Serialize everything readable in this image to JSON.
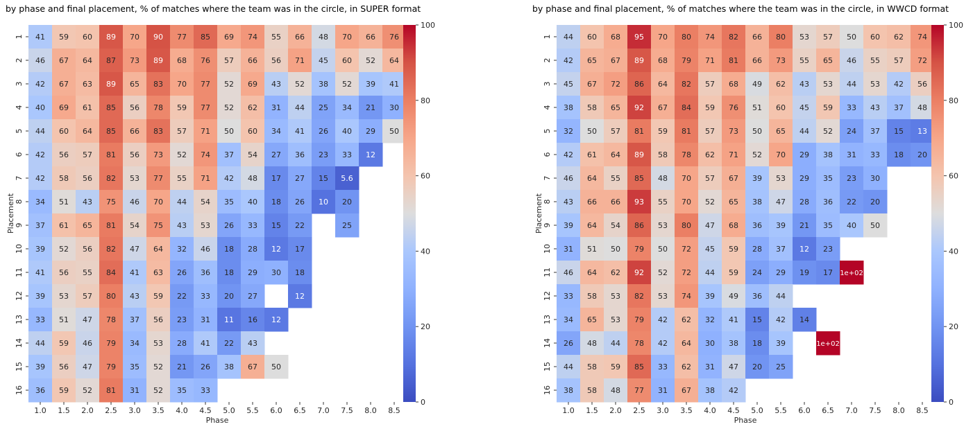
{
  "chart_data": [
    {
      "type": "heatmap",
      "title": "by phase and final placement, % of matches where the team was in the circle, in SUPER format",
      "xlabel": "Phase",
      "ylabel": "Placement",
      "x": [
        "1.0",
        "1.5",
        "2.0",
        "2.5",
        "3.0",
        "3.5",
        "4.0",
        "4.5",
        "5.0",
        "5.5",
        "6.0",
        "6.5",
        "7.0",
        "7.5",
        "8.0",
        "8.5"
      ],
      "y": [
        "1",
        "2",
        "3",
        "4",
        "5",
        "6",
        "7",
        "8",
        "9",
        "10",
        "11",
        "12",
        "13",
        "14",
        "15",
        "16"
      ],
      "values": [
        [
          41,
          59,
          60,
          89,
          70,
          90,
          77,
          85,
          69,
          74,
          55,
          66,
          48,
          70,
          66,
          76
        ],
        [
          46,
          67,
          64,
          87,
          73,
          89,
          68,
          76,
          57,
          66,
          56,
          71,
          45,
          60,
          52,
          64
        ],
        [
          42,
          67,
          63,
          89,
          65,
          83,
          70,
          77,
          52,
          69,
          43,
          52,
          38,
          52,
          39,
          41
        ],
        [
          40,
          69,
          61,
          85,
          56,
          78,
          59,
          77,
          52,
          62,
          31,
          44,
          25,
          34,
          21,
          30
        ],
        [
          44,
          60,
          64,
          85,
          66,
          83,
          57,
          71,
          50,
          60,
          34,
          41,
          26,
          40,
          29,
          50
        ],
        [
          42,
          56,
          57,
          81,
          56,
          73,
          52,
          74,
          37,
          54,
          27,
          36,
          23,
          33,
          12,
          null
        ],
        [
          42,
          58,
          56,
          82,
          53,
          77,
          55,
          71,
          42,
          48,
          17,
          27,
          15,
          5.6,
          null,
          null
        ],
        [
          34,
          51,
          43,
          75,
          46,
          70,
          44,
          54,
          35,
          40,
          18,
          26,
          10,
          20,
          null,
          null
        ],
        [
          37,
          61,
          65,
          81,
          54,
          75,
          43,
          53,
          26,
          33,
          15,
          22,
          null,
          25,
          null,
          null
        ],
        [
          39,
          52,
          56,
          82,
          47,
          64,
          32,
          46,
          18,
          28,
          12,
          17,
          null,
          null,
          null,
          null
        ],
        [
          41,
          56,
          55,
          84,
          41,
          63,
          26,
          36,
          18,
          29,
          30,
          18,
          null,
          null,
          null,
          null
        ],
        [
          39,
          53,
          57,
          80,
          43,
          59,
          22,
          33,
          20,
          27,
          null,
          12,
          null,
          null,
          null,
          null
        ],
        [
          33,
          51,
          47,
          78,
          37,
          56,
          23,
          31,
          11,
          16,
          12,
          null,
          null,
          null,
          null,
          null
        ],
        [
          44,
          59,
          46,
          79,
          34,
          53,
          28,
          41,
          22,
          43,
          null,
          null,
          null,
          null,
          null,
          null
        ],
        [
          39,
          56,
          47,
          79,
          35,
          52,
          21,
          26,
          38,
          67,
          50,
          null,
          null,
          null,
          null,
          null
        ],
        [
          36,
          59,
          52,
          81,
          31,
          52,
          35,
          33,
          null,
          null,
          null,
          null,
          null,
          null,
          null,
          null
        ]
      ],
      "labels": [
        [
          "41",
          "59",
          "60",
          "89",
          "70",
          "90",
          "77",
          "85",
          "69",
          "74",
          "55",
          "66",
          "48",
          "70",
          "66",
          "76"
        ],
        [
          "46",
          "67",
          "64",
          "87",
          "73",
          "89",
          "68",
          "76",
          "57",
          "66",
          "56",
          "71",
          "45",
          "60",
          "52",
          "64"
        ],
        [
          "42",
          "67",
          "63",
          "89",
          "65",
          "83",
          "70",
          "77",
          "52",
          "69",
          "43",
          "52",
          "38",
          "52",
          "39",
          "41"
        ],
        [
          "40",
          "69",
          "61",
          "85",
          "56",
          "78",
          "59",
          "77",
          "52",
          "62",
          "31",
          "44",
          "25",
          "34",
          "21",
          "30"
        ],
        [
          "44",
          "60",
          "64",
          "85",
          "66",
          "83",
          "57",
          "71",
          "50",
          "60",
          "34",
          "41",
          "26",
          "40",
          "29",
          "50"
        ],
        [
          "42",
          "56",
          "57",
          "81",
          "56",
          "73",
          "52",
          "74",
          "37",
          "54",
          "27",
          "36",
          "23",
          "33",
          "12",
          null
        ],
        [
          "42",
          "58",
          "56",
          "82",
          "53",
          "77",
          "55",
          "71",
          "42",
          "48",
          "17",
          "27",
          "15",
          "5.6",
          null,
          null
        ],
        [
          "34",
          "51",
          "43",
          "75",
          "46",
          "70",
          "44",
          "54",
          "35",
          "40",
          "18",
          "26",
          "10",
          "20",
          null,
          null
        ],
        [
          "37",
          "61",
          "65",
          "81",
          "54",
          "75",
          "43",
          "53",
          "26",
          "33",
          "15",
          "22",
          null,
          "25",
          null,
          null
        ],
        [
          "39",
          "52",
          "56",
          "82",
          "47",
          "64",
          "32",
          "46",
          "18",
          "28",
          "12",
          "17",
          null,
          null,
          null,
          null
        ],
        [
          "41",
          "56",
          "55",
          "84",
          "41",
          "63",
          "26",
          "36",
          "18",
          "29",
          "30",
          "18",
          null,
          null,
          null,
          null
        ],
        [
          "39",
          "53",
          "57",
          "80",
          "43",
          "59",
          "22",
          "33",
          "20",
          "27",
          null,
          "12",
          null,
          null,
          null,
          null
        ],
        [
          "33",
          "51",
          "47",
          "78",
          "37",
          "56",
          "23",
          "31",
          "11",
          "16",
          "12",
          null,
          null,
          null,
          null,
          null
        ],
        [
          "44",
          "59",
          "46",
          "79",
          "34",
          "53",
          "28",
          "41",
          "22",
          "43",
          null,
          null,
          null,
          null,
          null,
          null
        ],
        [
          "39",
          "56",
          "47",
          "79",
          "35",
          "52",
          "21",
          "26",
          "38",
          "67",
          "50",
          null,
          null,
          null,
          null,
          null
        ],
        [
          "36",
          "59",
          "52",
          "81",
          "31",
          "52",
          "35",
          "33",
          null,
          null,
          null,
          null,
          null,
          null,
          null,
          null
        ]
      ],
      "colorbar": {
        "colormap": "coolwarm",
        "range": [
          0,
          100
        ],
        "ticks": [
          "0",
          "20",
          "40",
          "60",
          "80",
          "100"
        ]
      }
    },
    {
      "type": "heatmap",
      "title": "by phase and final placement, % of matches where the team was in the circle, in WWCD format",
      "xlabel": "Phase",
      "ylabel": "Placement",
      "x": [
        "1.0",
        "1.5",
        "2.0",
        "2.5",
        "3.0",
        "3.5",
        "4.0",
        "4.5",
        "5.0",
        "5.5",
        "6.0",
        "6.5",
        "7.0",
        "7.5",
        "8.0",
        "8.5"
      ],
      "y": [
        "1",
        "2",
        "3",
        "4",
        "5",
        "6",
        "7",
        "8",
        "9",
        "10",
        "11",
        "12",
        "13",
        "14",
        "15",
        "16"
      ],
      "values": [
        [
          44,
          60,
          68,
          95,
          70,
          80,
          74,
          82,
          66,
          80,
          53,
          57,
          50,
          60,
          62,
          74
        ],
        [
          42,
          65,
          67,
          89,
          68,
          79,
          71,
          81,
          66,
          73,
          55,
          65,
          46,
          55,
          57,
          72
        ],
        [
          45,
          67,
          72,
          86,
          64,
          82,
          57,
          68,
          49,
          62,
          43,
          53,
          44,
          53,
          42,
          56
        ],
        [
          38,
          58,
          65,
          92,
          67,
          84,
          59,
          76,
          51,
          60,
          45,
          59,
          33,
          43,
          37,
          48
        ],
        [
          32,
          50,
          57,
          81,
          59,
          81,
          57,
          73,
          50,
          65,
          44,
          52,
          24,
          37,
          15,
          13
        ],
        [
          42,
          61,
          64,
          89,
          58,
          78,
          62,
          71,
          52,
          70,
          29,
          38,
          31,
          33,
          18,
          20
        ],
        [
          46,
          64,
          55,
          85,
          48,
          70,
          57,
          67,
          39,
          53,
          29,
          35,
          23,
          30,
          null,
          null
        ],
        [
          43,
          66,
          66,
          93,
          55,
          70,
          52,
          65,
          38,
          47,
          28,
          36,
          22,
          20,
          null,
          null
        ],
        [
          39,
          64,
          54,
          86,
          53,
          80,
          47,
          68,
          36,
          39,
          21,
          35,
          40,
          50,
          null,
          null
        ],
        [
          31,
          51,
          50,
          79,
          50,
          72,
          45,
          59,
          28,
          37,
          12,
          23,
          null,
          null,
          null,
          null
        ],
        [
          46,
          64,
          62,
          92,
          52,
          72,
          44,
          59,
          24,
          29,
          19,
          17,
          100,
          null,
          null,
          null
        ],
        [
          33,
          58,
          53,
          82,
          53,
          74,
          39,
          49,
          36,
          44,
          null,
          null,
          null,
          null,
          null,
          null
        ],
        [
          34,
          65,
          53,
          79,
          42,
          62,
          32,
          41,
          15,
          42,
          14,
          null,
          null,
          null,
          null,
          null
        ],
        [
          26,
          48,
          44,
          78,
          42,
          64,
          30,
          38,
          18,
          39,
          null,
          100,
          null,
          null,
          null,
          null
        ],
        [
          44,
          58,
          59,
          85,
          33,
          62,
          31,
          47,
          20,
          25,
          null,
          null,
          null,
          null,
          null,
          null
        ],
        [
          38,
          58,
          48,
          77,
          31,
          67,
          38,
          42,
          null,
          null,
          null,
          null,
          null,
          null,
          null,
          null
        ]
      ],
      "labels": [
        [
          "44",
          "60",
          "68",
          "95",
          "70",
          "80",
          "74",
          "82",
          "66",
          "80",
          "53",
          "57",
          "50",
          "60",
          "62",
          "74"
        ],
        [
          "42",
          "65",
          "67",
          "89",
          "68",
          "79",
          "71",
          "81",
          "66",
          "73",
          "55",
          "65",
          "46",
          "55",
          "57",
          "72"
        ],
        [
          "45",
          "67",
          "72",
          "86",
          "64",
          "82",
          "57",
          "68",
          "49",
          "62",
          "43",
          "53",
          "44",
          "53",
          "42",
          "56"
        ],
        [
          "38",
          "58",
          "65",
          "92",
          "67",
          "84",
          "59",
          "76",
          "51",
          "60",
          "45",
          "59",
          "33",
          "43",
          "37",
          "48"
        ],
        [
          "32",
          "50",
          "57",
          "81",
          "59",
          "81",
          "57",
          "73",
          "50",
          "65",
          "44",
          "52",
          "24",
          "37",
          "15",
          "13"
        ],
        [
          "42",
          "61",
          "64",
          "89",
          "58",
          "78",
          "62",
          "71",
          "52",
          "70",
          "29",
          "38",
          "31",
          "33",
          "18",
          "20"
        ],
        [
          "46",
          "64",
          "55",
          "85",
          "48",
          "70",
          "57",
          "67",
          "39",
          "53",
          "29",
          "35",
          "23",
          "30",
          null,
          null
        ],
        [
          "43",
          "66",
          "66",
          "93",
          "55",
          "70",
          "52",
          "65",
          "38",
          "47",
          "28",
          "36",
          "22",
          "20",
          null,
          null
        ],
        [
          "39",
          "64",
          "54",
          "86",
          "53",
          "80",
          "47",
          "68",
          "36",
          "39",
          "21",
          "35",
          "40",
          "50",
          null,
          null
        ],
        [
          "31",
          "51",
          "50",
          "79",
          "50",
          "72",
          "45",
          "59",
          "28",
          "37",
          "12",
          "23",
          null,
          null,
          null,
          null
        ],
        [
          "46",
          "64",
          "62",
          "92",
          "52",
          "72",
          "44",
          "59",
          "24",
          "29",
          "19",
          "17",
          "1e+02",
          null,
          null,
          null
        ],
        [
          "33",
          "58",
          "53",
          "82",
          "53",
          "74",
          "39",
          "49",
          "36",
          "44",
          null,
          null,
          null,
          null,
          null,
          null
        ],
        [
          "34",
          "65",
          "53",
          "79",
          "42",
          "62",
          "32",
          "41",
          "15",
          "42",
          "14",
          null,
          null,
          null,
          null,
          null
        ],
        [
          "26",
          "48",
          "44",
          "78",
          "42",
          "64",
          "30",
          "38",
          "18",
          "39",
          null,
          "1e+02",
          null,
          null,
          null,
          null
        ],
        [
          "44",
          "58",
          "59",
          "85",
          "33",
          "62",
          "31",
          "47",
          "20",
          "25",
          null,
          null,
          null,
          null,
          null,
          null
        ],
        [
          "38",
          "58",
          "48",
          "77",
          "31",
          "67",
          "38",
          "42",
          null,
          null,
          null,
          null,
          null,
          null,
          null,
          null
        ]
      ],
      "colorbar": {
        "colormap": "coolwarm",
        "range": [
          0,
          100
        ],
        "ticks": [
          "0",
          "20",
          "40",
          "60",
          "80",
          "100"
        ]
      }
    }
  ]
}
